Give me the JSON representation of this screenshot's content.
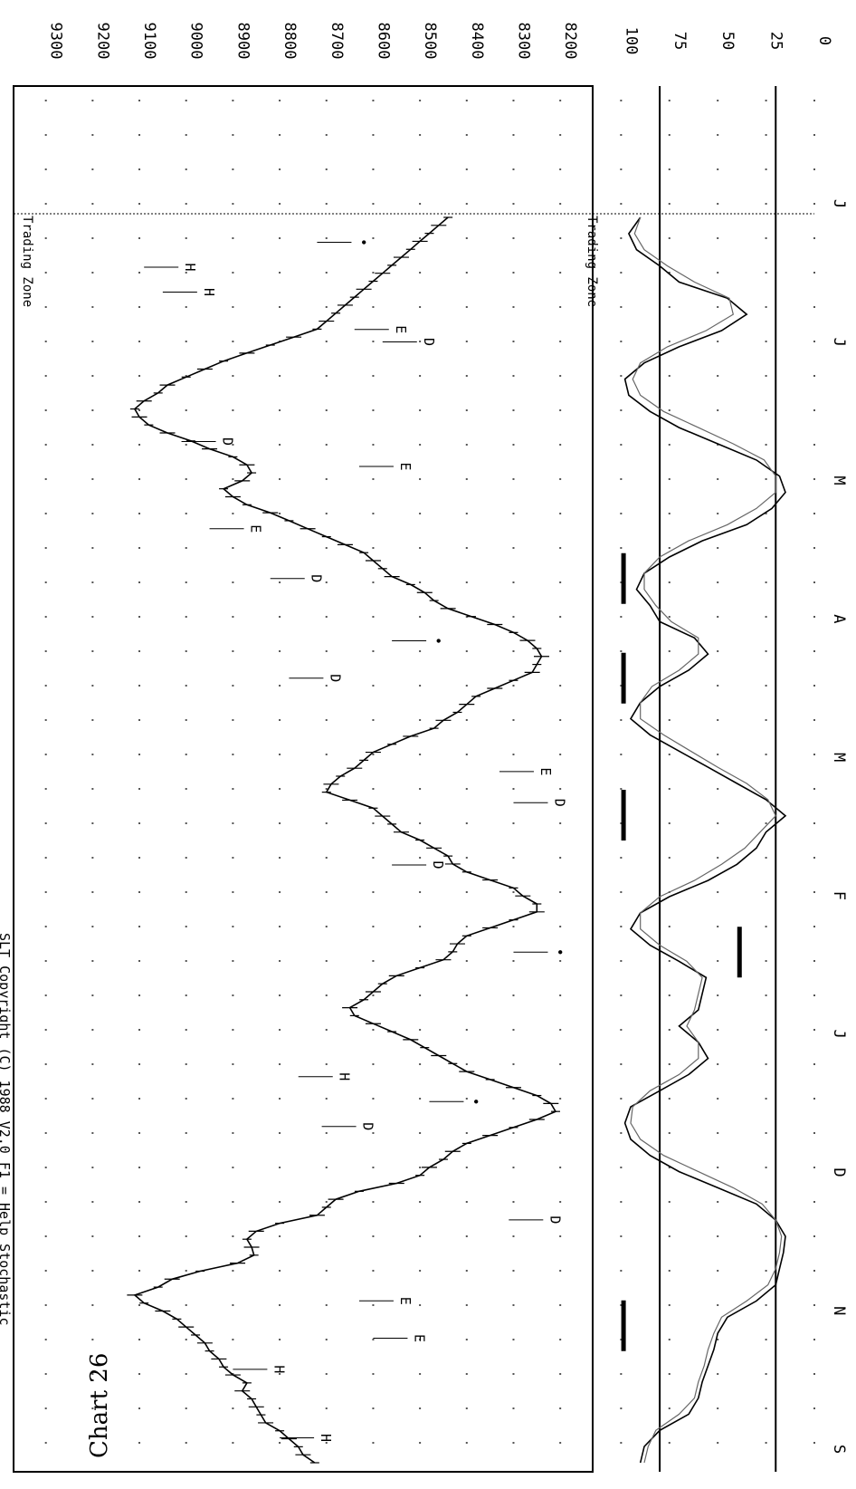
{
  "header": {
    "title": "SLT Copyright (C) 1988 V2.0 F1 = Help  Stochastic"
  },
  "chart_label": "Chart 26",
  "chart_data": [
    {
      "type": "line",
      "title": "",
      "price_axis_ticks": [
        9300,
        9200,
        9100,
        9000,
        8900,
        8800,
        8700,
        8600,
        8500,
        8400,
        8300,
        8200
      ],
      "price_range": [
        8150,
        9340
      ],
      "grid": true,
      "zone_label": "Trading Zone",
      "series": [
        {
          "values": [
            8725,
            8750,
            8760,
            8780,
            8800,
            8830,
            8840,
            8850,
            8860,
            8880,
            8870,
            8900,
            8920,
            8930,
            8950,
            8960,
            8980,
            9000,
            9020,
            9050,
            9090,
            9110,
            9060,
            9030,
            8970,
            8890,
            8855,
            8860,
            8870,
            8850,
            8800,
            8720,
            8700,
            8680,
            8630,
            8550,
            8500,
            8480,
            8450,
            8430,
            8400,
            8350,
            8300,
            8250,
            8210,
            8220,
            8250,
            8300,
            8350,
            8400,
            8430,
            8460,
            8490,
            8520,
            8560,
            8600,
            8640,
            8650,
            8620,
            8600,
            8580,
            8550,
            8500,
            8450,
            8430,
            8420,
            8400,
            8350,
            8300,
            8250,
            8250,
            8280,
            8300,
            8350,
            8400,
            8430,
            8440,
            8470,
            8500,
            8540,
            8560,
            8580,
            8600,
            8650,
            8700,
            8690,
            8670,
            8640,
            8620,
            8600,
            8560,
            8520,
            8470,
            8450,
            8420,
            8400,
            8380,
            8340,
            8300,
            8260,
            8250,
            8240,
            8250,
            8270,
            8300,
            8340,
            8390,
            8440,
            8470,
            8490,
            8520,
            8560,
            8580,
            8600,
            8620,
            8660,
            8700,
            8740,
            8780,
            8820,
            8870,
            8900,
            8920,
            8880,
            8860,
            8870,
            8900,
            8950,
            8990,
            9040,
            9080,
            9100,
            9110,
            9090,
            9060,
            9040,
            9000,
            8960,
            8920,
            8870,
            8820,
            8770,
            8720,
            8700,
            8680,
            8660,
            8640,
            8620,
            8600,
            8580,
            8560,
            8540,
            8520,
            8500,
            8480,
            8460,
            8440
          ]
        }
      ],
      "annotations": [
        {
          "text": "H",
          "x": 0.02,
          "y": 8800
        },
        {
          "text": "H",
          "x": 0.075,
          "y": 8900
        },
        {
          "text": "E",
          "x": 0.1,
          "y": 8600
        },
        {
          "text": "E",
          "x": 0.13,
          "y": 8630
        },
        {
          "text": "D",
          "x": 0.195,
          "y": 8310
        },
        {
          "text": "D",
          "x": 0.27,
          "y": 8710
        },
        {
          "text": "H",
          "x": 0.31,
          "y": 8760
        },
        {
          "text": "•",
          "x": 0.29,
          "y": 8480
        },
        {
          "text": "•",
          "x": 0.41,
          "y": 8300
        },
        {
          "text": "D",
          "x": 0.48,
          "y": 8560
        },
        {
          "text": "D",
          "x": 0.53,
          "y": 8300
        },
        {
          "text": "E",
          "x": 0.555,
          "y": 8330
        },
        {
          "text": "D",
          "x": 0.63,
          "y": 8780
        },
        {
          "text": "•",
          "x": 0.66,
          "y": 8560
        },
        {
          "text": "D",
          "x": 0.71,
          "y": 8820
        },
        {
          "text": "E",
          "x": 0.75,
          "y": 8950
        },
        {
          "text": "E",
          "x": 0.8,
          "y": 8630
        },
        {
          "text": "D",
          "x": 0.82,
          "y": 9010
        },
        {
          "text": "D",
          "x": 0.9,
          "y": 8580
        },
        {
          "text": "H",
          "x": 0.94,
          "y": 9050
        },
        {
          "text": "E",
          "x": 0.91,
          "y": 8640
        },
        {
          "text": "H",
          "x": 0.96,
          "y": 9090
        },
        {
          "text": "•",
          "x": 0.98,
          "y": 8720
        }
      ]
    },
    {
      "type": "line",
      "title": "",
      "indicator_axis_ticks": [
        100,
        75,
        50,
        25,
        0
      ],
      "indicator_range": [
        0,
        110
      ],
      "reference_lines": [
        80,
        20
      ],
      "grid": true,
      "series": [
        {
          "values": [
            90,
            88,
            80,
            65,
            60,
            58,
            55,
            52,
            50,
            45,
            30,
            20,
            18,
            16,
            15,
            20,
            30,
            50,
            70,
            85,
            95,
            98,
            95,
            80,
            65,
            55,
            60,
            70,
            60,
            58,
            56,
            70,
            85,
            95,
            90,
            75,
            55,
            40,
            30,
            25,
            15,
            25,
            40,
            55,
            70,
            85,
            95,
            90,
            80,
            65,
            55,
            62,
            80,
            85,
            92,
            88,
            75,
            58,
            35,
            22,
            15,
            18,
            30,
            50,
            70,
            85,
            96,
            98,
            88,
            70,
            48,
            35,
            45,
            70,
            80,
            92,
            96,
            90
          ]
        },
        {
          "values": [
            88,
            86,
            82,
            70,
            62,
            60,
            57,
            55,
            52,
            48,
            35,
            24,
            20,
            18,
            17,
            20,
            27,
            42,
            60,
            78,
            90,
            95,
            94,
            85,
            70,
            60,
            60,
            66,
            62,
            60,
            58,
            66,
            80,
            90,
            90,
            80,
            62,
            48,
            36,
            28,
            20,
            24,
            35,
            50,
            64,
            78,
            90,
            90,
            84,
            70,
            60,
            60,
            74,
            82,
            88,
            88,
            80,
            65,
            45,
            30,
            20,
            20,
            26,
            42,
            60,
            78,
            90,
            94,
            90,
            76,
            56,
            42,
            44,
            62,
            76,
            88,
            93,
            90
          ]
        }
      ],
      "signal_marks": [
        {
          "x": 0.11,
          "level": 80
        },
        {
          "x": 0.41,
          "level": 20
        },
        {
          "x": 0.52,
          "level": 80
        },
        {
          "x": 0.63,
          "level": 80
        },
        {
          "x": 0.71,
          "level": 80
        }
      ],
      "x_tick_labels": [
        "S",
        "N",
        "D",
        "J",
        "F",
        "M",
        "A",
        "M",
        "J",
        "J"
      ]
    }
  ]
}
